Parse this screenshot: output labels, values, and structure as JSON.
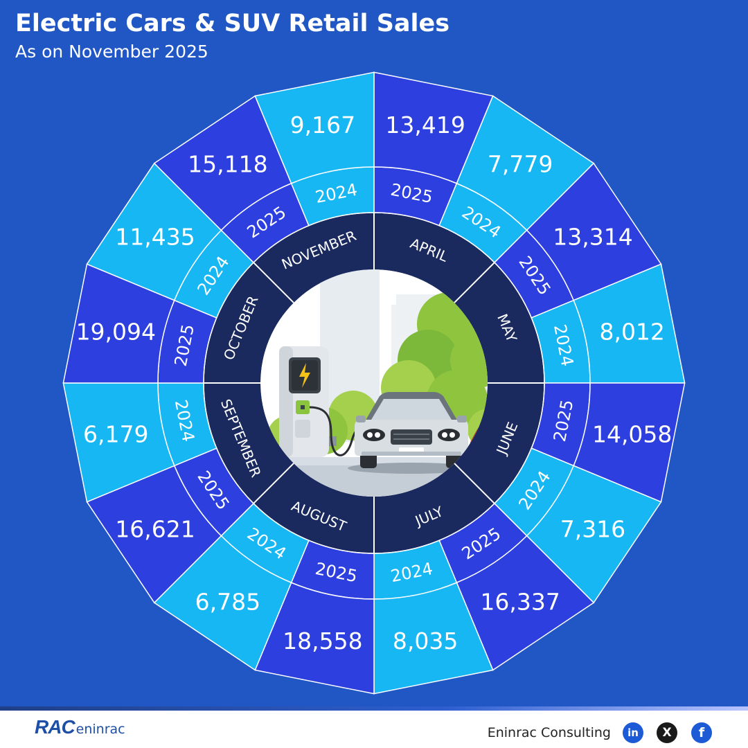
{
  "title": "Electric Cars & SUV Retail Sales",
  "subtitle": "As on November 2025",
  "chart_data": {
    "type": "radial-bar",
    "title": "Electric Cars & SUV Retail Sales",
    "subtitle": "As on November 2025",
    "unit": "units",
    "months": [
      {
        "month": "APRIL",
        "values": [
          {
            "year": "2025",
            "value": 13419
          },
          {
            "year": "2024",
            "value": 7779
          }
        ]
      },
      {
        "month": "MAY",
        "values": [
          {
            "year": "2025",
            "value": 13314
          },
          {
            "year": "2024",
            "value": 8012
          }
        ]
      },
      {
        "month": "JUNE",
        "values": [
          {
            "year": "2025",
            "value": 14058
          },
          {
            "year": "2024",
            "value": 7316
          }
        ]
      },
      {
        "month": "JULY",
        "values": [
          {
            "year": "2025",
            "value": 16337
          },
          {
            "year": "2024",
            "value": 8035
          }
        ]
      },
      {
        "month": "AUGUST",
        "values": [
          {
            "year": "2025",
            "value": 18558
          },
          {
            "year": "2024",
            "value": 6785
          }
        ]
      },
      {
        "month": "SEPTEMBER",
        "values": [
          {
            "year": "2025",
            "value": 16621
          },
          {
            "year": "2024",
            "value": 6179
          }
        ]
      },
      {
        "month": "OCTOBER",
        "values": [
          {
            "year": "2025",
            "value": 19094
          },
          {
            "year": "2024",
            "value": 11435
          }
        ]
      },
      {
        "month": "NOVEMBER",
        "values": [
          {
            "year": "2025",
            "value": 15118
          },
          {
            "year": "2024",
            "value": 9167
          }
        ]
      }
    ],
    "colors": {
      "2025": "#2d3fdf",
      "2024": "#17b7f4",
      "month_ring": "#1b2a5e",
      "separator": "#ffffff"
    }
  },
  "illustration": {
    "description_icon": "ev-charging-station-with-car"
  },
  "footer": {
    "logo_text": "RAC",
    "logo_suffix": "eninrac",
    "company": "Eninrac Consulting",
    "social_linkedin": "in",
    "social_x": "X",
    "social_facebook": "f"
  }
}
